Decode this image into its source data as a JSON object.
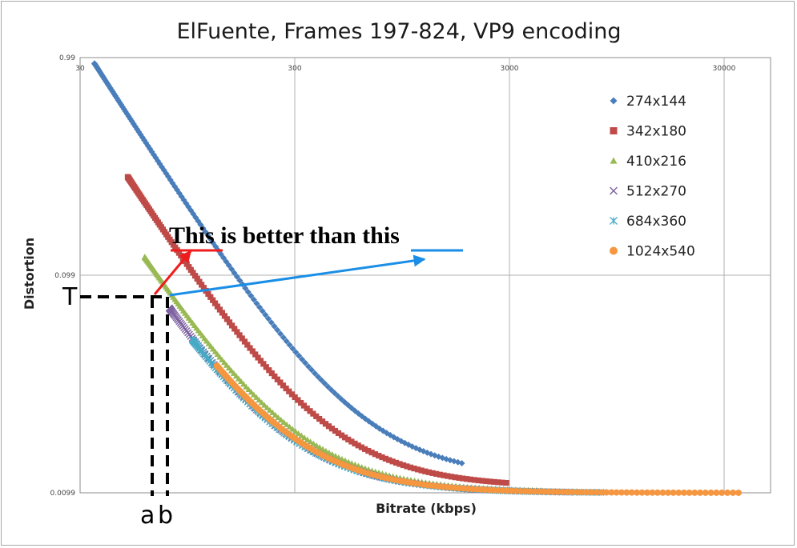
{
  "chart_data": {
    "type": "scatter",
    "title": "ElFuente, Frames 197-824, VP9 encoding",
    "xlabel": "Bitrate (kbps)",
    "ylabel": "Distortion",
    "xscale": "log",
    "yscale": "log",
    "xlim": [
      30,
      40000
    ],
    "ylim": [
      0.0099,
      0.99
    ],
    "xticks": [
      "30",
      "300",
      "3000",
      "30000"
    ],
    "yticks": [
      "0.99",
      "0.099",
      "0.0099"
    ],
    "grid": true,
    "legend_position": "right",
    "series": [
      {
        "name": "274x144",
        "marker": "diamond",
        "color": "#4a7ebb",
        "x_range": [
          35,
          1800
        ],
        "d_start": 0.93,
        "d_floor": 0.0115
      },
      {
        "name": "342x180",
        "marker": "square",
        "color": "#be4b48",
        "x_range": [
          50,
          2900
        ],
        "d_start": 0.28,
        "d_floor": 0.0105
      },
      {
        "name": "410x216",
        "marker": "triangle",
        "color": "#98b954",
        "x_range": [
          60,
          4200
        ],
        "d_start": 0.12,
        "d_floor": 0.01
      },
      {
        "name": "512x270",
        "marker": "x",
        "color": "#7d60a0",
        "x_range": [
          78,
          6000
        ],
        "d_start": 0.07,
        "d_floor": 0.0099
      },
      {
        "name": "684x360",
        "marker": "asterisk",
        "color": "#46aac5",
        "x_range": [
          100,
          8000
        ],
        "d_start": 0.05,
        "d_floor": 0.0099
      },
      {
        "name": "1024x540",
        "marker": "circle",
        "color": "#f59640",
        "x_range": [
          130,
          35000
        ],
        "d_start": 0.038,
        "d_floor": 0.0099
      }
    ]
  },
  "annotations": {
    "text_this": "This",
    "text_middle": " is better than ",
    "text_this2": "this",
    "label_T": "T",
    "label_a": "a",
    "label_b": "b"
  }
}
